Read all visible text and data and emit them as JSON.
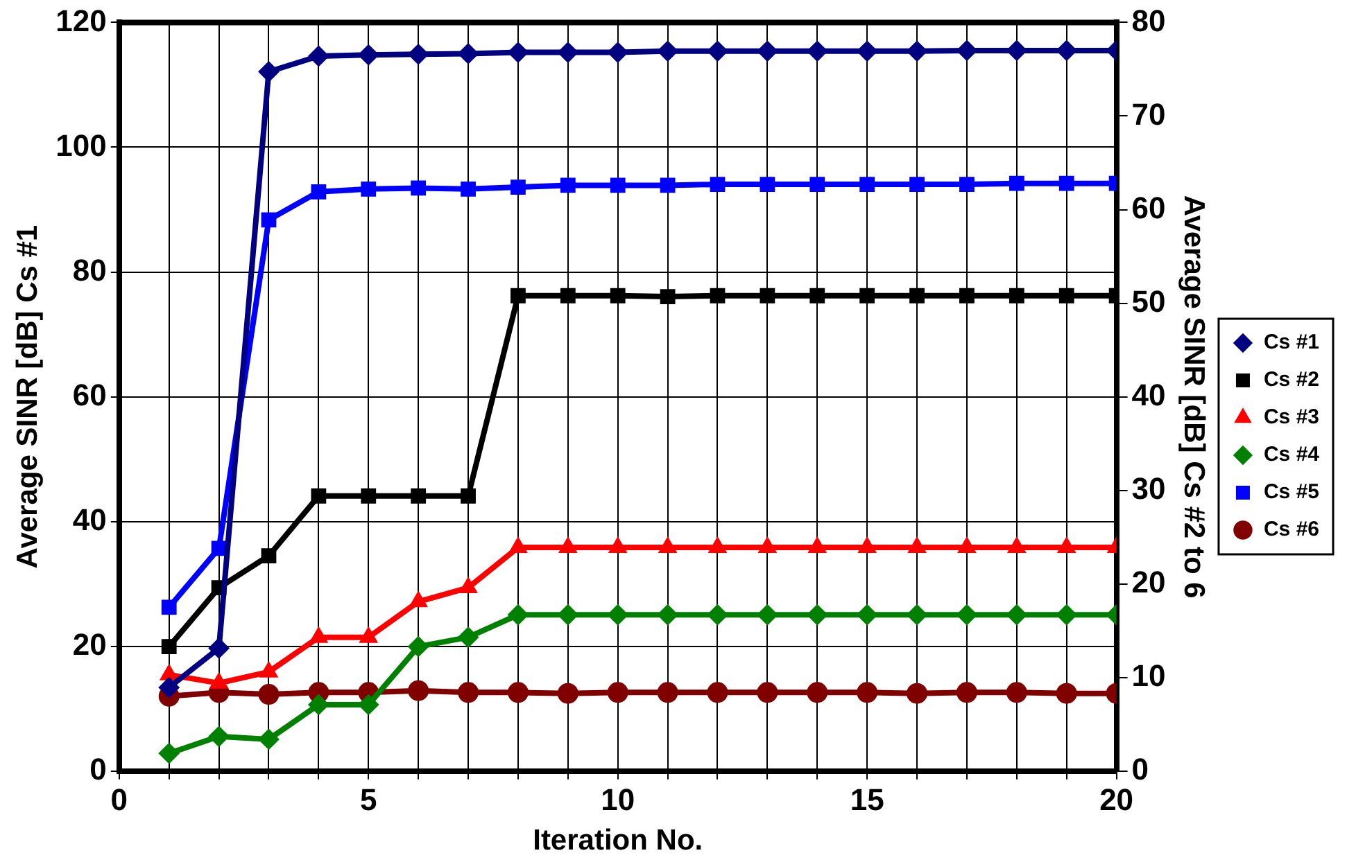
{
  "chart_data": {
    "type": "line",
    "xlabel": "Iteration No.",
    "ylabel": "Average SINR [dB] Cs #1",
    "y2label": "Average SINR [dB] Cs #2 to 6",
    "x": [
      1,
      2,
      3,
      4,
      5,
      6,
      7,
      8,
      9,
      10,
      11,
      12,
      13,
      14,
      15,
      16,
      17,
      18,
      19,
      20
    ],
    "xlim": [
      0,
      20
    ],
    "xticks": [
      0,
      {
        "value": 1,
        "label": null
      },
      {
        "value": 2,
        "label": null
      },
      {
        "value": 3,
        "label": null
      },
      {
        "value": 4,
        "label": null
      },
      5,
      {
        "value": 6,
        "label": null
      },
      {
        "value": 7,
        "label": null
      },
      {
        "value": 8,
        "label": null
      },
      {
        "value": 9,
        "label": null
      },
      10,
      {
        "value": 11,
        "label": null
      },
      {
        "value": 12,
        "label": null
      },
      {
        "value": 13,
        "label": null
      },
      {
        "value": 14,
        "label": null
      },
      15,
      {
        "value": 16,
        "label": null
      },
      {
        "value": 17,
        "label": null
      },
      {
        "value": 18,
        "label": null
      },
      {
        "value": 19,
        "label": null
      },
      20
    ],
    "ylim": [
      0,
      120
    ],
    "yticks": [
      0,
      20,
      40,
      60,
      80,
      100,
      120
    ],
    "y2lim": [
      0,
      80
    ],
    "y2ticks": [
      0,
      10,
      20,
      30,
      40,
      50,
      60,
      70,
      80
    ],
    "grid": true,
    "legend": "right",
    "line_style": "solid",
    "series": [
      {
        "name": "Cs #1",
        "color": "#000080",
        "marker": "diamond",
        "values": [
          13.4,
          19.7,
          112.1,
          114.6,
          114.8,
          114.9,
          115,
          115.2,
          115.2,
          115.2,
          115.4,
          115.4,
          115.4,
          115.4,
          115.4,
          115.4,
          115.5,
          115.5,
          115.5,
          115.5
        ]
      },
      {
        "name": "Cs #2",
        "color": "#000000",
        "marker": "square",
        "axis": "y2",
        "values": [
          13.3,
          19.6,
          23,
          29.4,
          29.4,
          29.4,
          29.4,
          50.8,
          50.8,
          50.8,
          50.7,
          50.8,
          50.8,
          50.8,
          50.8,
          50.8,
          50.8,
          50.8,
          50.8,
          50.8
        ]
      },
      {
        "name": "Cs #3",
        "color": "#ff0000",
        "marker": "triangle",
        "axis": "y2",
        "values": [
          10.3,
          9.4,
          10.6,
          14.3,
          14.3,
          18.1,
          19.6,
          23.9,
          23.9,
          23.9,
          23.9,
          23.9,
          23.9,
          23.9,
          23.9,
          23.9,
          23.9,
          23.9,
          23.9,
          23.9
        ]
      },
      {
        "name": "Cs #4",
        "color": "#008000",
        "marker": "diamond",
        "axis": "y2",
        "values": [
          1.9,
          3.7,
          3.4,
          7.1,
          7.1,
          13.3,
          14.3,
          16.7,
          16.7,
          16.7,
          16.7,
          16.7,
          16.7,
          16.7,
          16.7,
          16.7,
          16.7,
          16.7,
          16.7,
          16.7
        ]
      },
      {
        "name": "Cs #5",
        "color": "#0000ff",
        "marker": "square",
        "axis": "y2",
        "values": [
          17.5,
          23.8,
          58.9,
          61.9,
          62.2,
          62.3,
          62.2,
          62.4,
          62.6,
          62.6,
          62.6,
          62.7,
          62.7,
          62.7,
          62.7,
          62.7,
          62.7,
          62.8,
          62.8,
          62.8
        ]
      },
      {
        "name": "Cs #6",
        "color": "#800000",
        "marker": "circle",
        "axis": "y2",
        "values": [
          8,
          8.4,
          8.2,
          8.4,
          8.4,
          8.6,
          8.4,
          8.4,
          8.3,
          8.4,
          8.4,
          8.4,
          8.4,
          8.4,
          8.4,
          8.3,
          8.4,
          8.4,
          8.3,
          8.3
        ]
      }
    ]
  }
}
